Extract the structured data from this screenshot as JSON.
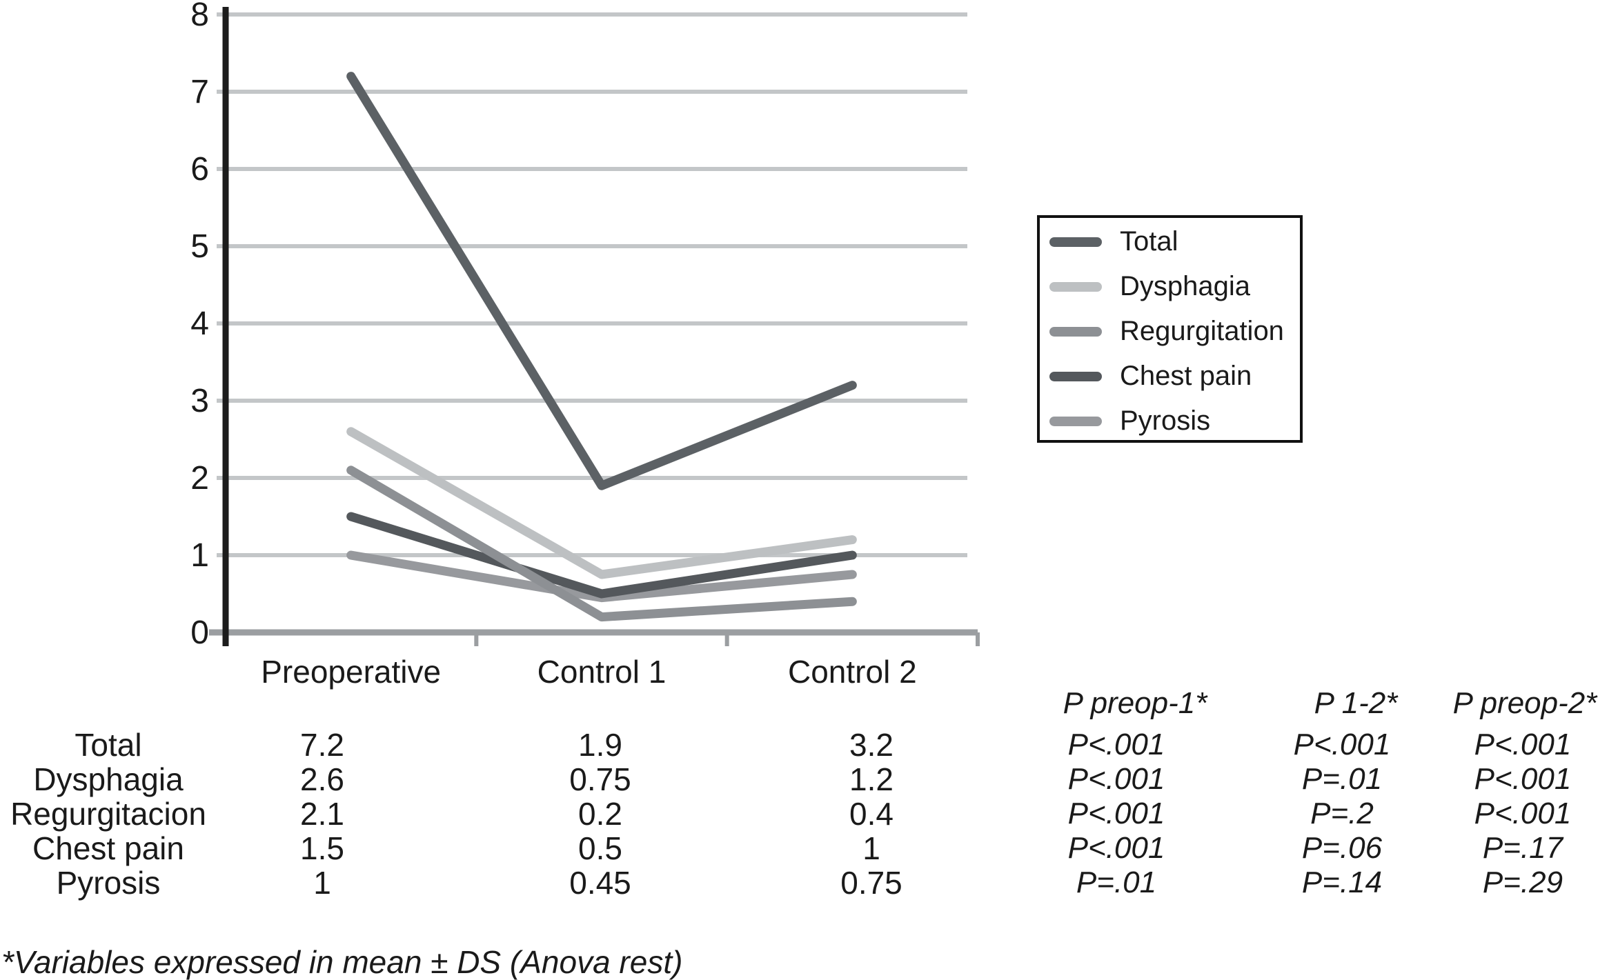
{
  "figure": {
    "footnote": "*Variables expressed in mean ± DS (Anova rest)"
  },
  "colors": {
    "grid": "#c3c6c8",
    "baseline": "#9b9ea1",
    "y_axis": "#1c1c1c",
    "text": "#1a1a1a"
  },
  "chart_data": {
    "type": "line",
    "title": "",
    "xlabel": "",
    "ylabel": "",
    "categories": [
      "Preoperative",
      "Control 1",
      "Control 2"
    ],
    "series": [
      {
        "name": "Total",
        "values": [
          7.2,
          1.9,
          3.2
        ],
        "color": "#5c6165"
      },
      {
        "name": "Dysphagia",
        "values": [
          2.6,
          0.75,
          1.2
        ],
        "color": "#bdc0c2"
      },
      {
        "name": "Regurgitation",
        "values": [
          2.1,
          0.2,
          0.4
        ],
        "color": "#8d9094"
      },
      {
        "name": "Chest pain",
        "values": [
          1.5,
          0.5,
          1.0
        ],
        "color": "#54585c"
      },
      {
        "name": "Pyrosis",
        "values": [
          1.0,
          0.45,
          0.75
        ],
        "color": "#97999d"
      }
    ],
    "ylim": [
      0,
      8
    ],
    "y_ticks": [
      0,
      1,
      2,
      3,
      4,
      5,
      6,
      7,
      8
    ],
    "grid": "horizontal-gridlines",
    "legend_position": "right-of-plot"
  },
  "table": {
    "p_headers": [
      "P preop-1*",
      "P 1-2*",
      "P preop-2*"
    ],
    "rows": [
      {
        "label": "Total",
        "values": [
          "7.2",
          "1.9",
          "3.2"
        ],
        "p_values": [
          "P<.001",
          "P<.001",
          "P<.001"
        ]
      },
      {
        "label": "Dysphagia",
        "values": [
          "2.6",
          "0.75",
          "1.2"
        ],
        "p_values": [
          "P<.001",
          "P=.01",
          "P<.001"
        ]
      },
      {
        "label": "Regurgitacion",
        "values": [
          "2.1",
          "0.2",
          "0.4"
        ],
        "p_values": [
          "P<.001",
          "P=.2",
          "P<.001"
        ]
      },
      {
        "label": "Chest pain",
        "values": [
          "1.5",
          "0.5",
          "1"
        ],
        "p_values": [
          "P<.001",
          "P=.06",
          "P=.17"
        ]
      },
      {
        "label": "Pyrosis",
        "values": [
          "1",
          "0.45",
          "0.75"
        ],
        "p_values": [
          "P=.01",
          "P=.14",
          "P=.29"
        ]
      }
    ]
  }
}
